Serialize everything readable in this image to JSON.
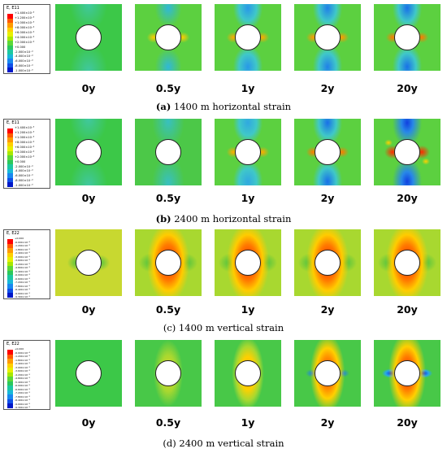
{
  "time_labels": [
    "0y",
    "0.5y",
    "1y",
    "2y",
    "20y"
  ],
  "rows": [
    {
      "legend_title": "E, E11",
      "legend_ticks": [
        "+1.400×10⁻³",
        "+1.200×10⁻³",
        "+1.000×10⁻³",
        "+8.000×10⁻⁴",
        "+6.000×10⁻⁴",
        "+4.000×10⁻⁴",
        "+2.000×10⁻⁴",
        "+0.000",
        "-2.000×10⁻⁴",
        "-4.000×10⁻⁴",
        "-6.000×10⁻⁴",
        "-8.000×10⁻⁴",
        "-1.000×10⁻³"
      ],
      "caption_letter": "(a)",
      "caption_text": " 1400 m horizontal strain"
    },
    {
      "legend_title": "E, E11",
      "legend_ticks": [
        "+1.400×10⁻³",
        "+1.200×10⁻³",
        "+1.000×10⁻³",
        "+8.000×10⁻⁴",
        "+6.000×10⁻⁴",
        "+4.000×10⁻⁴",
        "+2.000×10⁻⁴",
        "+0.000",
        "-2.000×10⁻⁴",
        "-4.000×10⁻⁴",
        "-6.000×10⁻⁴",
        "-8.000×10⁻⁴",
        "-1.000×10⁻³"
      ],
      "caption_letter": "(b)",
      "caption_text": " 2400 m horizontal strain"
    },
    {
      "legend_title": "E, E22",
      "legend_ticks": [
        "+0.000",
        "-6.000×10⁻⁴",
        "-1.200×10⁻³",
        "-1.800×10⁻³",
        "-2.400×10⁻³",
        "-3.000×10⁻³",
        "-3.600×10⁻³",
        "-4.200×10⁻³",
        "-4.800×10⁻³",
        "-5.400×10⁻³",
        "-6.000×10⁻³",
        "-6.600×10⁻³",
        "-7.200×10⁻³",
        "-7.800×10⁻³",
        "-8.400×10⁻³",
        "-9.000×10⁻³",
        "-9.300×10⁻³"
      ],
      "caption_letter": "(c)",
      "caption_text": " 1400 m vertical strain"
    },
    {
      "legend_title": "E, E22",
      "legend_ticks": [
        "+0.000",
        "-6.000×10⁻⁴",
        "-1.200×10⁻³",
        "-1.800×10⁻³",
        "-2.400×10⁻³",
        "-3.000×10⁻³",
        "-3.600×10⁻³",
        "-4.200×10⁻³",
        "-4.800×10⁻³",
        "-5.400×10⁻³",
        "-6.000×10⁻³",
        "-6.600×10⁻³",
        "-7.200×10⁻³",
        "-7.800×10⁻³",
        "-8.400×10⁻³",
        "-9.000×10⁻³",
        "-9.300×10⁻³"
      ],
      "caption_letter": "(d)",
      "caption_text": " 2400 m vertical strain"
    }
  ],
  "colors": {
    "legend_scale": [
      "#ff0000",
      "#ff5a00",
      "#ff9a00",
      "#ffcf00",
      "#e8f000",
      "#a8e800",
      "#5cd838",
      "#2cc85c",
      "#1cc8a0",
      "#18b8d8",
      "#1888f0",
      "#1050e8",
      "#0018c8"
    ]
  }
}
